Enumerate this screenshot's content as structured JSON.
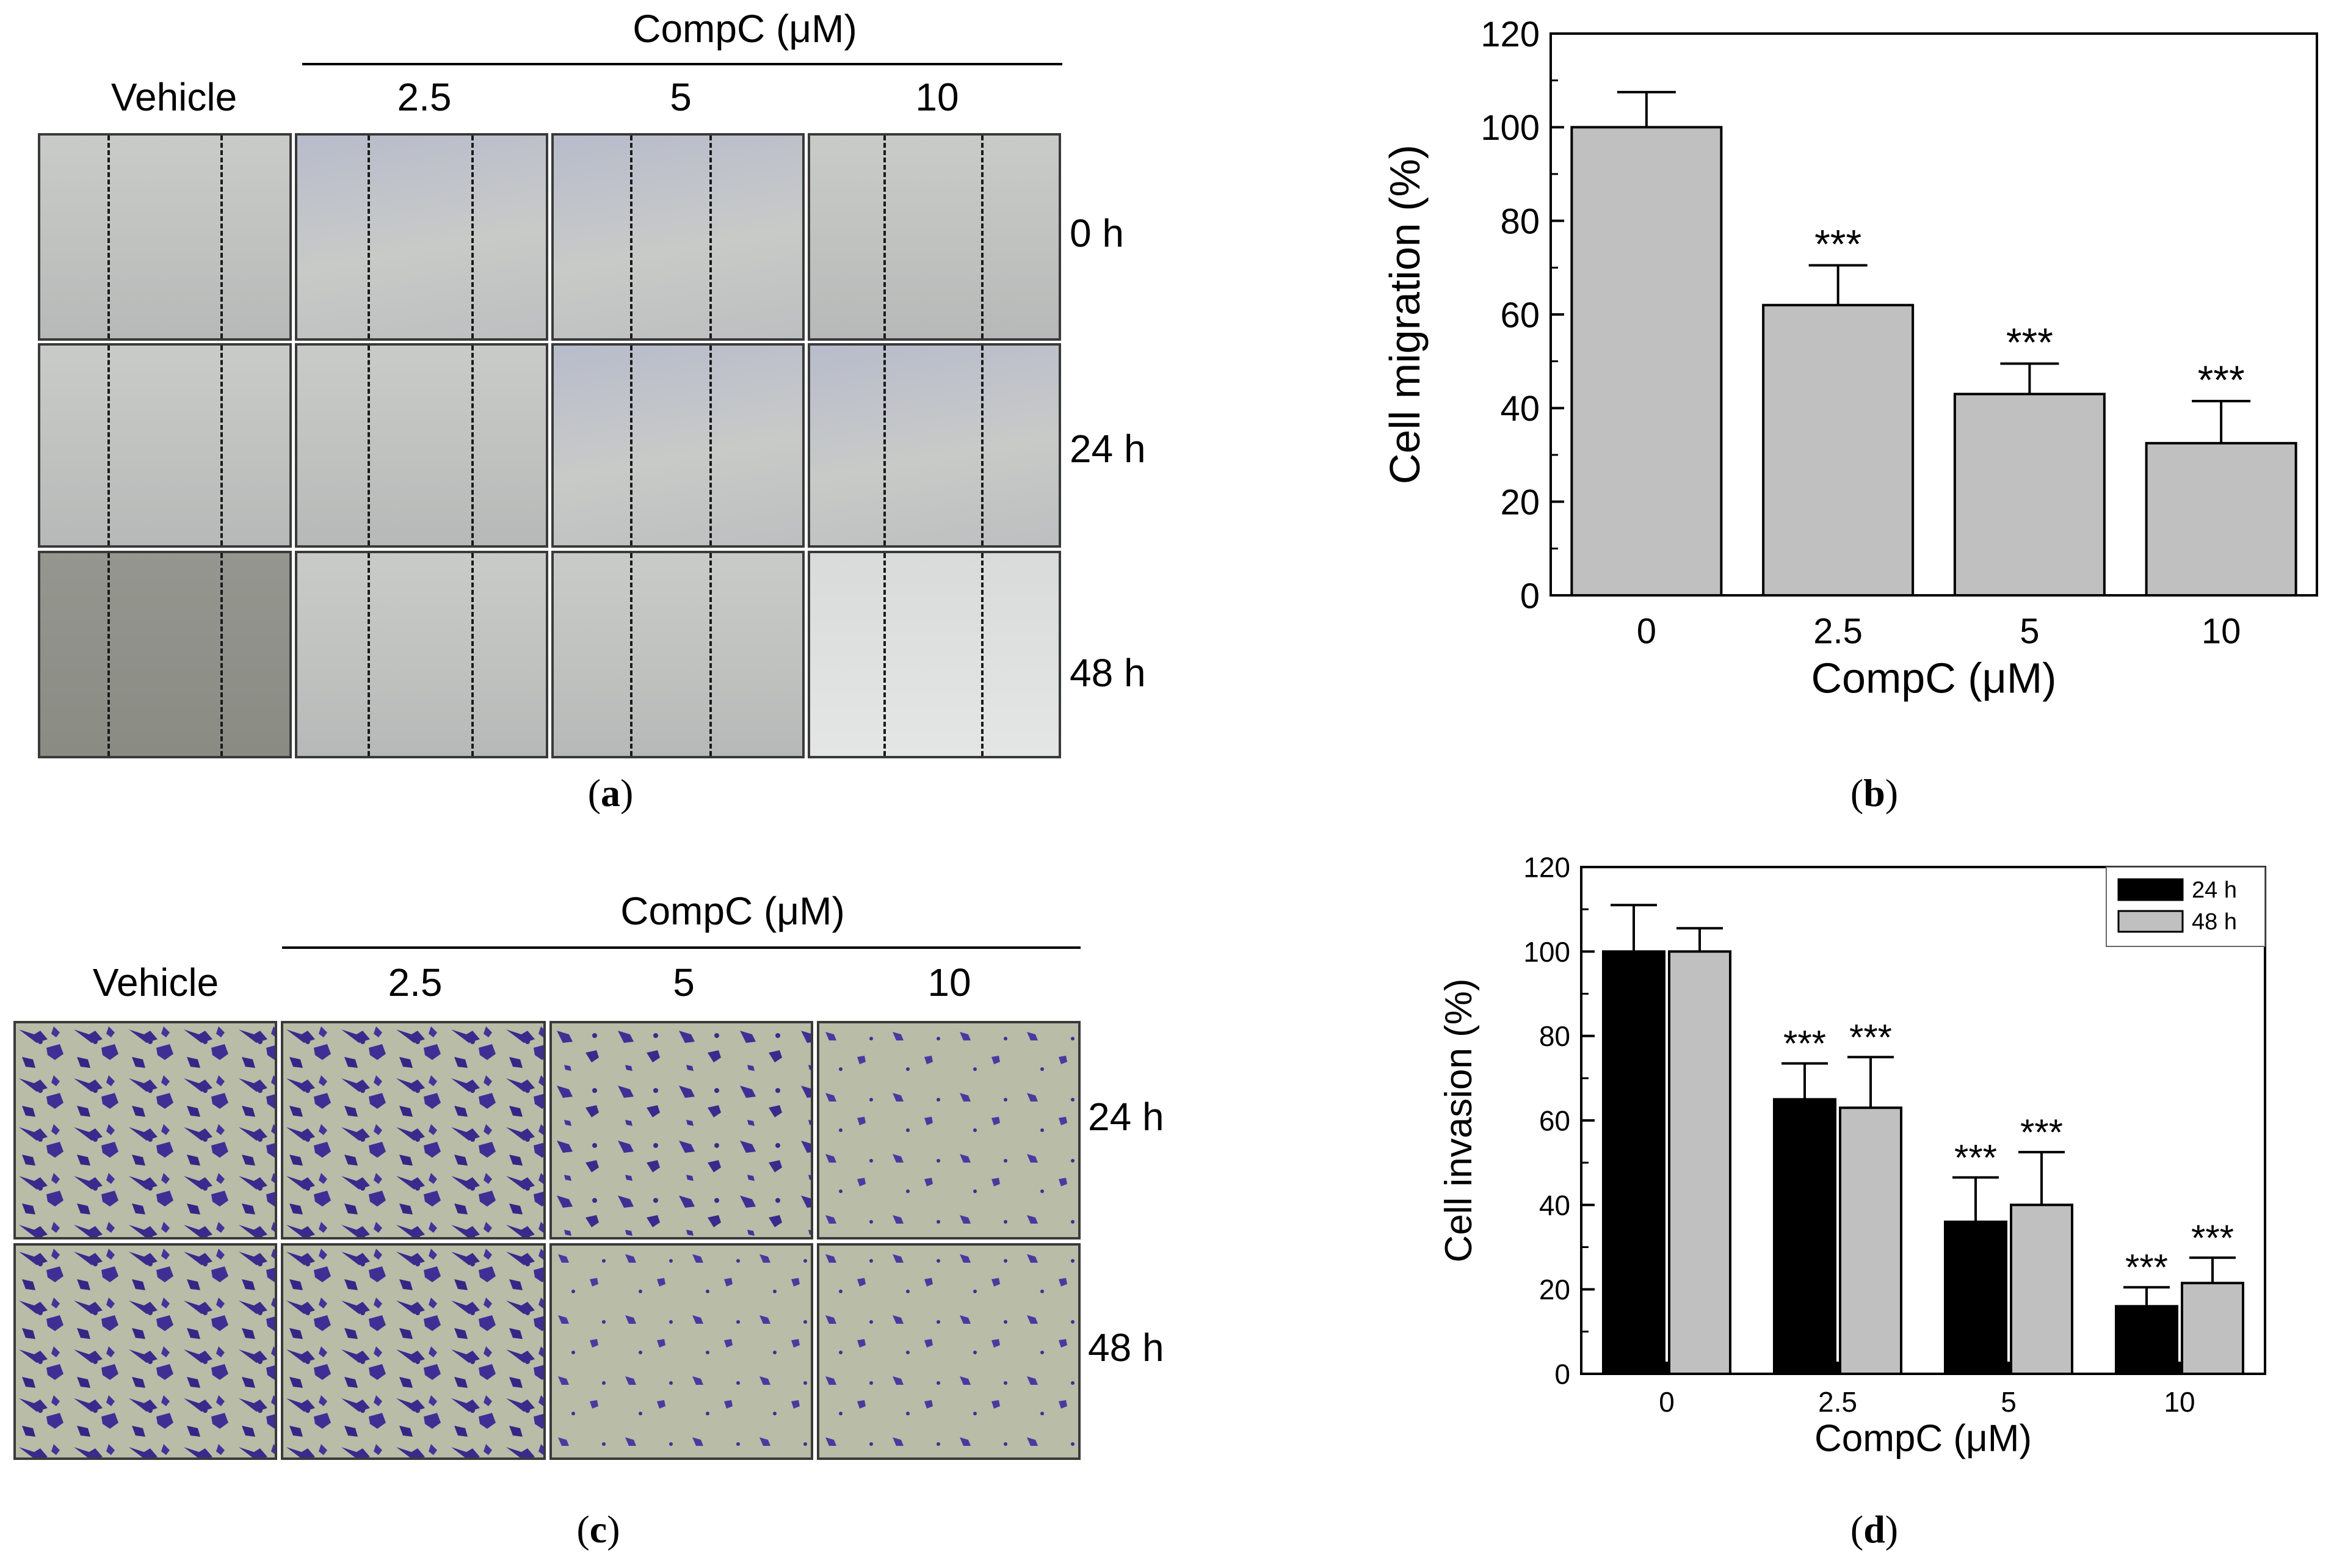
{
  "figure_panels": {
    "a": {
      "header": "CompC  (μM)",
      "vehicle_label": "Vehicle",
      "columns": [
        "2.5",
        "5",
        "10"
      ],
      "row_labels": [
        "0 h",
        "24 h",
        "48 h"
      ],
      "caption_open": "(",
      "caption_letter": "a",
      "caption_close": ")"
    },
    "c": {
      "header": "CompC  (μM)",
      "vehicle_label": "Vehicle",
      "columns": [
        "2.5",
        "5",
        "10"
      ],
      "row_labels": [
        "24 h",
        "48 h"
      ],
      "caption_open": "(",
      "caption_letter": "c",
      "caption_close": ")"
    },
    "b": {
      "caption_open": "(",
      "caption_letter": "b",
      "caption_close": ")"
    },
    "d": {
      "caption_open": "(",
      "caption_letter": "d",
      "caption_close": ")"
    }
  },
  "colors": {
    "gray_bar": "#c0c0c0",
    "black_bar": "#000000",
    "crystal_violet": "#3a2a8c"
  },
  "chart_data": [
    {
      "type": "bar",
      "panel": "b",
      "categories": [
        "0",
        "2.5",
        "5",
        "10"
      ],
      "values": [
        100,
        62,
        43,
        32.5
      ],
      "errors": [
        7.5,
        8.5,
        6.5,
        9
      ],
      "significance": [
        "",
        "***",
        "***",
        "***"
      ],
      "xlabel": "CompC (μM)",
      "ylabel": "Cell migration (%)",
      "ylim": [
        0,
        120
      ],
      "yticks": [
        "0",
        "20",
        "40",
        "60",
        "80",
        "100",
        "120"
      ],
      "grid": false
    },
    {
      "type": "bar",
      "panel": "d",
      "categories": [
        "0",
        "2.5",
        "5",
        "10"
      ],
      "series": [
        {
          "name": "24 h",
          "values": [
            100,
            65,
            36,
            16
          ],
          "errors": [
            11,
            8.5,
            10.5,
            4.5
          ],
          "significance": [
            "",
            "***",
            "***",
            "***"
          ],
          "color": "#000000"
        },
        {
          "name": "48 h",
          "values": [
            100,
            63,
            40,
            21.5
          ],
          "errors": [
            5.5,
            12,
            12.5,
            6
          ],
          "significance": [
            "",
            "***",
            "***",
            "***"
          ],
          "color": "#c0c0c0"
        }
      ],
      "xlabel": "CompC (μM)",
      "ylabel": "Cell invasion (%)",
      "ylim": [
        0,
        120
      ],
      "yticks": [
        "0",
        "20",
        "40",
        "60",
        "80",
        "100",
        "120"
      ],
      "legend": "top-right",
      "grid": false
    }
  ]
}
